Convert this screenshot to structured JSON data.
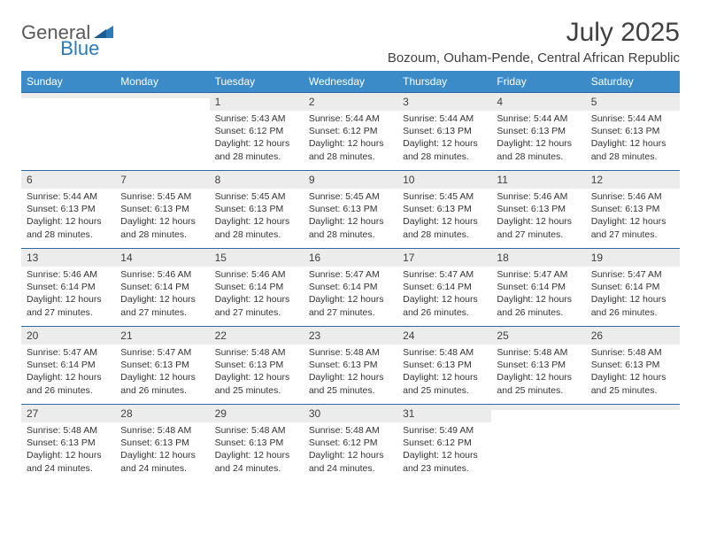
{
  "brand": {
    "part1": "General",
    "part2": "Blue"
  },
  "title": "July 2025",
  "location": "Bozoum, Ouham-Pende, Central African Republic",
  "theme": {
    "header_bg": "#3b8bc8",
    "header_fg": "#ffffff",
    "daynum_bg": "#ececec",
    "rule_color": "#2a6aa0",
    "text_color": "#333333",
    "title_color": "#404040",
    "logo_gray": "#5a5a5a",
    "logo_blue": "#2a7ab8"
  },
  "weekdays": [
    "Sunday",
    "Monday",
    "Tuesday",
    "Wednesday",
    "Thursday",
    "Friday",
    "Saturday"
  ],
  "weeks": [
    [
      null,
      null,
      {
        "n": "1",
        "sr": "5:43 AM",
        "ss": "6:12 PM",
        "dl": "12 hours and 28 minutes."
      },
      {
        "n": "2",
        "sr": "5:44 AM",
        "ss": "6:12 PM",
        "dl": "12 hours and 28 minutes."
      },
      {
        "n": "3",
        "sr": "5:44 AM",
        "ss": "6:13 PM",
        "dl": "12 hours and 28 minutes."
      },
      {
        "n": "4",
        "sr": "5:44 AM",
        "ss": "6:13 PM",
        "dl": "12 hours and 28 minutes."
      },
      {
        "n": "5",
        "sr": "5:44 AM",
        "ss": "6:13 PM",
        "dl": "12 hours and 28 minutes."
      }
    ],
    [
      {
        "n": "6",
        "sr": "5:44 AM",
        "ss": "6:13 PM",
        "dl": "12 hours and 28 minutes."
      },
      {
        "n": "7",
        "sr": "5:45 AM",
        "ss": "6:13 PM",
        "dl": "12 hours and 28 minutes."
      },
      {
        "n": "8",
        "sr": "5:45 AM",
        "ss": "6:13 PM",
        "dl": "12 hours and 28 minutes."
      },
      {
        "n": "9",
        "sr": "5:45 AM",
        "ss": "6:13 PM",
        "dl": "12 hours and 28 minutes."
      },
      {
        "n": "10",
        "sr": "5:45 AM",
        "ss": "6:13 PM",
        "dl": "12 hours and 28 minutes."
      },
      {
        "n": "11",
        "sr": "5:46 AM",
        "ss": "6:13 PM",
        "dl": "12 hours and 27 minutes."
      },
      {
        "n": "12",
        "sr": "5:46 AM",
        "ss": "6:13 PM",
        "dl": "12 hours and 27 minutes."
      }
    ],
    [
      {
        "n": "13",
        "sr": "5:46 AM",
        "ss": "6:14 PM",
        "dl": "12 hours and 27 minutes."
      },
      {
        "n": "14",
        "sr": "5:46 AM",
        "ss": "6:14 PM",
        "dl": "12 hours and 27 minutes."
      },
      {
        "n": "15",
        "sr": "5:46 AM",
        "ss": "6:14 PM",
        "dl": "12 hours and 27 minutes."
      },
      {
        "n": "16",
        "sr": "5:47 AM",
        "ss": "6:14 PM",
        "dl": "12 hours and 27 minutes."
      },
      {
        "n": "17",
        "sr": "5:47 AM",
        "ss": "6:14 PM",
        "dl": "12 hours and 26 minutes."
      },
      {
        "n": "18",
        "sr": "5:47 AM",
        "ss": "6:14 PM",
        "dl": "12 hours and 26 minutes."
      },
      {
        "n": "19",
        "sr": "5:47 AM",
        "ss": "6:14 PM",
        "dl": "12 hours and 26 minutes."
      }
    ],
    [
      {
        "n": "20",
        "sr": "5:47 AM",
        "ss": "6:14 PM",
        "dl": "12 hours and 26 minutes."
      },
      {
        "n": "21",
        "sr": "5:47 AM",
        "ss": "6:13 PM",
        "dl": "12 hours and 26 minutes."
      },
      {
        "n": "22",
        "sr": "5:48 AM",
        "ss": "6:13 PM",
        "dl": "12 hours and 25 minutes."
      },
      {
        "n": "23",
        "sr": "5:48 AM",
        "ss": "6:13 PM",
        "dl": "12 hours and 25 minutes."
      },
      {
        "n": "24",
        "sr": "5:48 AM",
        "ss": "6:13 PM",
        "dl": "12 hours and 25 minutes."
      },
      {
        "n": "25",
        "sr": "5:48 AM",
        "ss": "6:13 PM",
        "dl": "12 hours and 25 minutes."
      },
      {
        "n": "26",
        "sr": "5:48 AM",
        "ss": "6:13 PM",
        "dl": "12 hours and 25 minutes."
      }
    ],
    [
      {
        "n": "27",
        "sr": "5:48 AM",
        "ss": "6:13 PM",
        "dl": "12 hours and 24 minutes."
      },
      {
        "n": "28",
        "sr": "5:48 AM",
        "ss": "6:13 PM",
        "dl": "12 hours and 24 minutes."
      },
      {
        "n": "29",
        "sr": "5:48 AM",
        "ss": "6:13 PM",
        "dl": "12 hours and 24 minutes."
      },
      {
        "n": "30",
        "sr": "5:48 AM",
        "ss": "6:12 PM",
        "dl": "12 hours and 24 minutes."
      },
      {
        "n": "31",
        "sr": "5:49 AM",
        "ss": "6:12 PM",
        "dl": "12 hours and 23 minutes."
      },
      null,
      null
    ]
  ],
  "labels": {
    "sunrise": "Sunrise:",
    "sunset": "Sunset:",
    "daylight": "Daylight:"
  }
}
